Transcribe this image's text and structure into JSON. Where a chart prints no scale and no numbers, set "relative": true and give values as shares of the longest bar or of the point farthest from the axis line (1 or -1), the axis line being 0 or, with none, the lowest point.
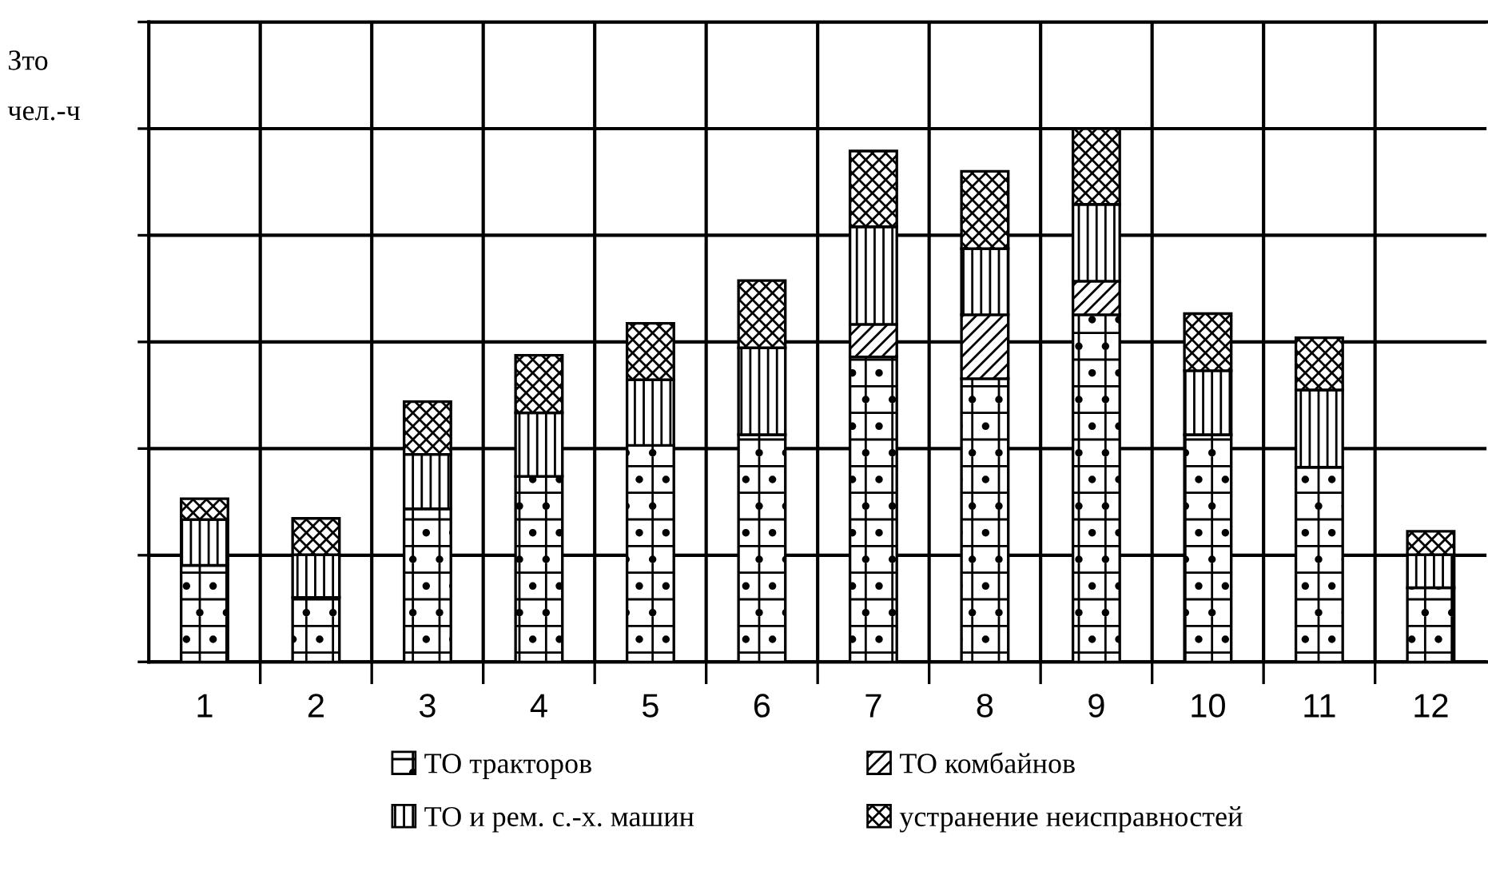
{
  "chart_data": {
    "type": "bar",
    "stacked": true,
    "relative": true,
    "ylabel": "Зто\nчел.-ч",
    "categories": [
      "1",
      "2",
      "3",
      "4",
      "5",
      "6",
      "7",
      "8",
      "9",
      "10",
      "11",
      "12"
    ],
    "series": [
      {
        "name": "ТО тракторов",
        "color": "#000000",
        "values": [
          0.181,
          0.121,
          0.287,
          0.348,
          0.406,
          0.426,
          0.572,
          0.531,
          0.651,
          0.426,
          0.365,
          0.139
        ]
      },
      {
        "name": "ТО комбайнов",
        "color": "#000000",
        "values": [
          null,
          null,
          null,
          null,
          null,
          null,
          0.061,
          0.12,
          0.063,
          null,
          null,
          null
        ]
      },
      {
        "name": "ТО и рем. с.-х. машин",
        "color": "#000000",
        "values": [
          0.086,
          0.08,
          0.102,
          0.119,
          0.123,
          0.163,
          0.183,
          0.124,
          0.144,
          0.12,
          0.145,
          0.062
        ]
      },
      {
        "name": "устранение неисправностей",
        "color": "#000000",
        "values": [
          0.039,
          0.068,
          0.099,
          0.108,
          0.106,
          0.126,
          0.142,
          0.145,
          0.142,
          0.107,
          0.098,
          0.044
        ]
      }
    ],
    "grid": true,
    "legend": "bottom"
  }
}
